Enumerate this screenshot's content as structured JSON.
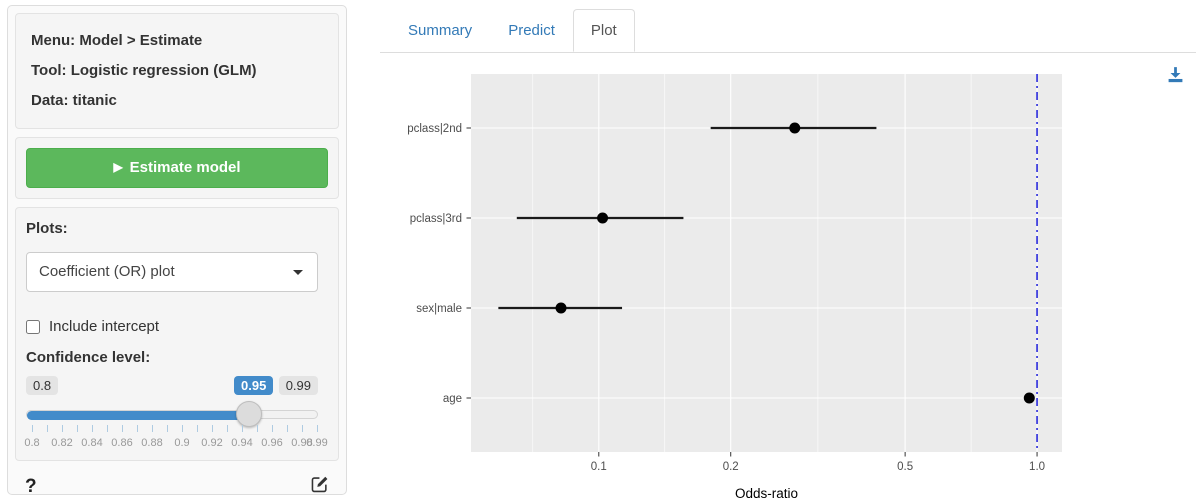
{
  "sidebar": {
    "info": {
      "menu": "Menu: Model > Estimate",
      "tool": "Tool: Logistic regression (GLM)",
      "data": "Data: titanic"
    },
    "estimate_button": {
      "label": "Estimate model",
      "play_icon": "▶"
    },
    "plots_label": "Plots:",
    "plot_select": {
      "value": "Coefficient (OR) plot",
      "caret_icon": "caret-down-icon"
    },
    "include_intercept": {
      "label": "Include intercept",
      "checked": false
    },
    "confidence": {
      "label": "Confidence level:",
      "min_label": "0.8",
      "value_label": "0.95",
      "max_label": "0.99",
      "min": 0.8,
      "max": 0.99,
      "step": 0.01,
      "value": 0.95,
      "tick_labels": [
        "0.8",
        "0.82",
        "0.84",
        "0.86",
        "0.88",
        "0.9",
        "0.92",
        "0.94",
        "0.96",
        "0.98",
        "0.99"
      ]
    },
    "help_label": "?"
  },
  "tabs": [
    {
      "label": "Summary",
      "active": false
    },
    {
      "label": "Predict",
      "active": false
    },
    {
      "label": "Plot",
      "active": true
    }
  ],
  "chart_data": {
    "type": "scatter",
    "subtype": "coefficient-odds-ratio-dotplot-with-ci",
    "categories_top_to_bottom": [
      "pclass|2nd",
      "pclass|3rd",
      "sex|male",
      "age"
    ],
    "points": [
      {
        "label": "pclass|2nd",
        "or": 0.28,
        "ci_low": 0.18,
        "ci_high": 0.43
      },
      {
        "label": "pclass|3rd",
        "or": 0.102,
        "ci_low": 0.065,
        "ci_high": 0.156
      },
      {
        "label": "sex|male",
        "or": 0.082,
        "ci_low": 0.059,
        "ci_high": 0.113
      },
      {
        "label": "age",
        "or": 0.96,
        "ci_low": 0.945,
        "ci_high": 0.982
      }
    ],
    "xlabel": "Odds-ratio",
    "x_scale": "log",
    "x_ticks": [
      0.1,
      0.2,
      0.5,
      1.0
    ],
    "x_tick_labels": [
      "0.1",
      "0.2",
      "0.5",
      "1.0"
    ],
    "x_minor_ticks": [
      0.0707,
      0.1414,
      0.3162,
      0.7071
    ],
    "x_domain": [
      0.0511,
      1.14
    ],
    "reference_line": 1.0,
    "grid": true,
    "legend": false,
    "panel_bg": "#ebebeb",
    "grid_color": "#ffffff",
    "point_color": "#000000",
    "ci_color": "#1a1a1a",
    "reference_line_color": "#2b2bdd",
    "axis_text_color": "#4d4d4d"
  },
  "colors": {
    "accent_blue": "#337ab7",
    "slider_blue": "#428bca",
    "button_green": "#5cb85c"
  },
  "icons": {
    "play": "▶",
    "download": "download-icon",
    "edit": "edit-icon",
    "help": "question-mark-icon"
  }
}
